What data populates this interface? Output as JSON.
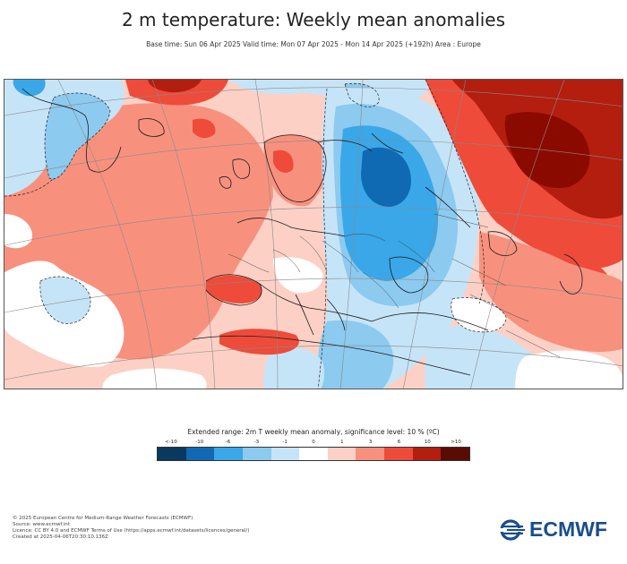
{
  "header": {
    "title": "2 m temperature: Weekly mean anomalies",
    "subtitle": "Base time: Sun 06 Apr 2025 Valid time: Mon 07 Apr 2025 - Mon 14 Apr 2025 (+192h) Area : Europe"
  },
  "map": {
    "region": "Europe",
    "colors": {
      "strong_warm": "#8b0a00",
      "warm": "#ee4b3a",
      "mild_warm": "#f7917e",
      "slight_warm": "#fcd0c5",
      "neutral": "#ffffff",
      "slight_cold": "#c6e4f8",
      "mild_cold": "#8ccaf0",
      "cold": "#3aa7e8",
      "strong_cold": "#0f6ab3"
    }
  },
  "legend": {
    "title": "Extended range: 2m T weekly mean anomaly, significance level: 10 % (ºC)",
    "ticks": [
      "<-10",
      "-10",
      "-6",
      "-3",
      "-1",
      "0",
      "1",
      "3",
      "6",
      "10",
      ">10"
    ],
    "colors": [
      "#073a5e",
      "#0f6ab3",
      "#3aa7e8",
      "#8ccaf0",
      "#c6e4f8",
      "#ffffff",
      "#fcd0c5",
      "#f7917e",
      "#ee4b3a",
      "#b31e0f",
      "#5a0b04"
    ]
  },
  "footer": {
    "line1": "© 2025 European Centre for Medium-Range Weather Forecasts (ECMWF)",
    "line2": "Source: www.ecmwf.int",
    "line3": "Licence: CC BY 4.0 and ECMWF Terms of Use (https://apps.ecmwf.int/datasets/licences/general/)",
    "line4": "Created at 2025-04-06T20:30:10.136Z"
  },
  "logo": {
    "text": "ECMWF"
  }
}
